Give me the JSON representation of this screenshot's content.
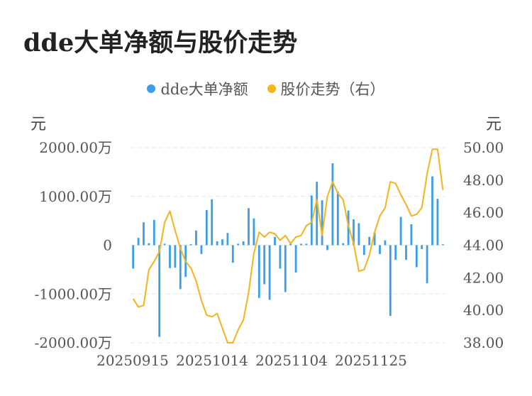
{
  "title": "dde大单净额与股价走势",
  "legend": [
    {
      "name": "dde大单净额",
      "color": "#3a9ee8"
    },
    {
      "name": "股价走势（右）",
      "color": "#f5b31c"
    }
  ],
  "left_unit": "元",
  "right_unit": "元",
  "chart_data": {
    "type": "bar+line",
    "x_labels": [
      "20250915",
      "20251014",
      "20251104",
      "20251125"
    ],
    "y_left": {
      "ticks": [
        "2000.00万",
        "1000.00万",
        "0",
        "-1000.00万",
        "-2000.00万"
      ],
      "min": -2000,
      "max": 2000,
      "unit": "万"
    },
    "y_right": {
      "ticks": [
        "50.00",
        "48.00",
        "46.00",
        "44.00",
        "42.00",
        "40.00",
        "38.00"
      ],
      "min": 38,
      "max": 50
    },
    "series": [
      {
        "name": "dde大单净额",
        "type": "bar",
        "values": [
          -480,
          150,
          470,
          40,
          520,
          -1880,
          30,
          -470,
          -460,
          -900,
          -650,
          20,
          300,
          -180,
          720,
          940,
          80,
          120,
          250,
          -360,
          30,
          80,
          760,
          550,
          -1080,
          -800,
          -1120,
          170,
          -480,
          -960,
          30,
          -560,
          30,
          30,
          1020,
          1300,
          920,
          -100,
          1680,
          1100,
          40,
          710,
          530,
          450,
          -200,
          170,
          260,
          -180,
          100,
          -1450,
          -300,
          580,
          -300,
          430,
          -450,
          -80,
          -780,
          1410,
          950,
          20
        ]
      },
      {
        "name": "股价走势（右）",
        "type": "line",
        "values": [
          40.7,
          40.2,
          40.3,
          42.5,
          43.0,
          43.6,
          45.4,
          46.1,
          44.9,
          43.8,
          43.0,
          42.6,
          41.8,
          40.6,
          39.7,
          39.6,
          39.8,
          38.9,
          38.0,
          38.0,
          38.8,
          39.4,
          41.1,
          43.5,
          44.8,
          44.5,
          44.8,
          44.7,
          44.3,
          44.6,
          44.1,
          44.5,
          44.6,
          45.2,
          45.4,
          46.8,
          44.6,
          47.0,
          47.9,
          47.2,
          46.8,
          45.2,
          44.1,
          42.4,
          42.5,
          43.4,
          44.8,
          45.8,
          46.3,
          47.9,
          47.8,
          47.1,
          46.5,
          45.8,
          45.9,
          46.3,
          48.4,
          49.9,
          49.9,
          47.4
        ]
      }
    ]
  }
}
